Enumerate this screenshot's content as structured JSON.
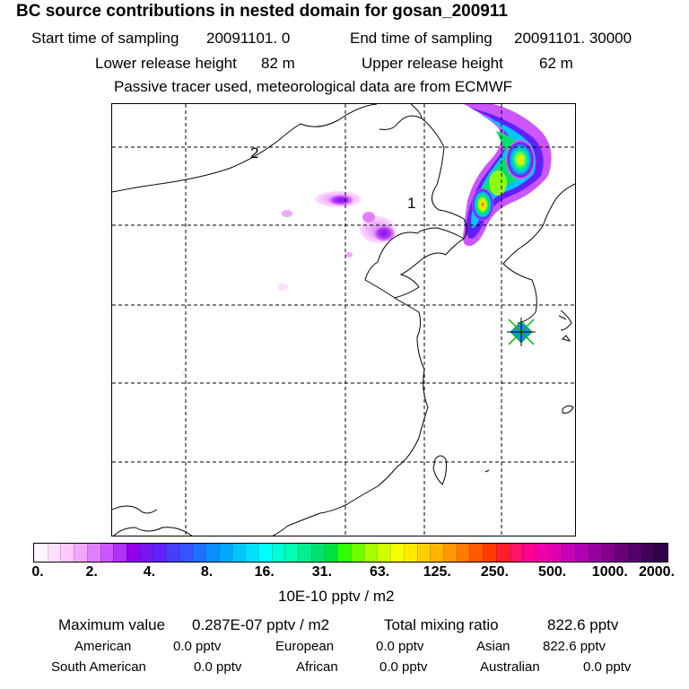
{
  "title": "BC  source contributions in nested domain for gosan_200911",
  "sampling": {
    "start_label": "Start time of sampling",
    "start_value": "20091101.     0",
    "end_label": "End time of sampling",
    "end_value": "20091101. 30000"
  },
  "release": {
    "lower_label": "Lower release height",
    "lower_value": "82 m",
    "upper_label": "Upper release height",
    "upper_value": "62 m"
  },
  "note": "Passive tracer used, meteorological data are from ECMWF",
  "map": {
    "region_labels": [
      "1",
      "2"
    ],
    "colors": {
      "outline": "#000000",
      "grid": "#000000",
      "receptor_marker": "#00c000",
      "receptor_fill": "#1a8cff"
    }
  },
  "colorbar": {
    "ticks": [
      "0.",
      "2.",
      "4.",
      "8.",
      "16.",
      "31.",
      "63.",
      "125.",
      "250.",
      "500.",
      "1000.",
      "2000."
    ],
    "colors": [
      "#fff5ff",
      "#ffe0ff",
      "#ffc8ff",
      "#f0a8ff",
      "#e080ff",
      "#cc55ff",
      "#b030f5",
      "#9400ee",
      "#7a14f0",
      "#6020ff",
      "#4a3cff",
      "#3355ff",
      "#1f70ff",
      "#0d8cff",
      "#00a8ff",
      "#00c4ff",
      "#00e0ff",
      "#00ffff",
      "#00ffd8",
      "#00ffb0",
      "#00f090",
      "#00e070",
      "#00e040",
      "#30ff00",
      "#70ff00",
      "#a8ff00",
      "#d0ff00",
      "#f4ff00",
      "#ffea00",
      "#ffd000",
      "#ffb400",
      "#ff9800",
      "#ff7c00",
      "#ff5a00",
      "#ff3c00",
      "#ff1e28",
      "#ff1464",
      "#ff0090",
      "#f000a8",
      "#dc00b0",
      "#c800b4",
      "#b000b0",
      "#98009e",
      "#80008c",
      "#68007a",
      "#540068",
      "#420058",
      "#300048"
    ],
    "unit": "10E-10 pptv / m2"
  },
  "summary": {
    "max_label": "Maximum value",
    "max_value": "0.287E-07 pptv / m2",
    "total_label": "Total mixing ratio",
    "total_value": "822.6 pptv",
    "american_label": "American",
    "american_value": "0.0 pptv",
    "european_label": "European",
    "european_value": "0.0 pptv",
    "asian_label": "Asian",
    "asian_value": "822.6 pptv",
    "south_american_label": "South American",
    "south_american_value": "0.0 pptv",
    "african_label": "African",
    "african_value": "0.0 pptv",
    "australian_label": "Australian",
    "australian_value": "0.0 pptv"
  }
}
